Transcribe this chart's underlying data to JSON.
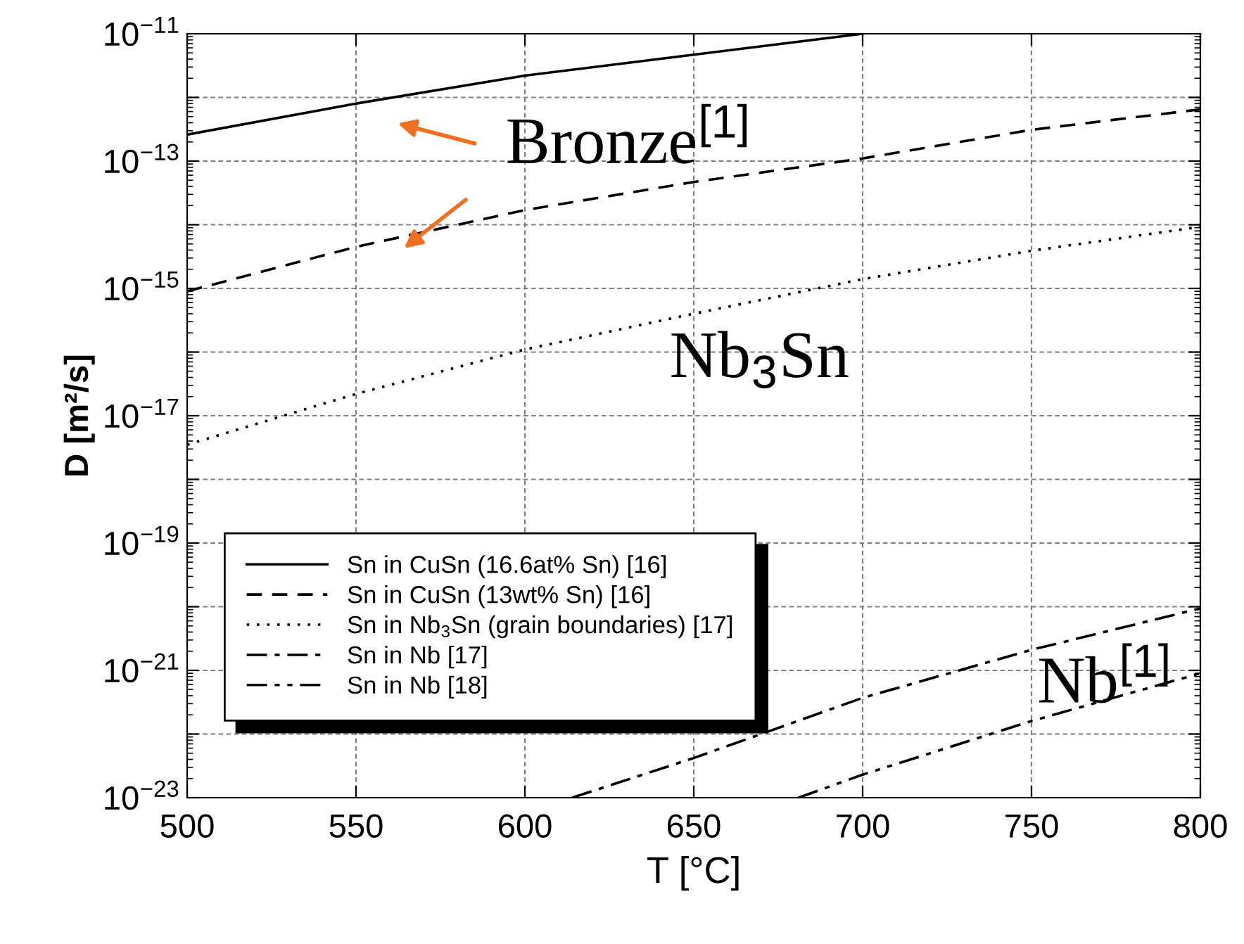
{
  "chart_data": {
    "type": "line",
    "xlabel": "T [°C]",
    "ylabel": "D [m²/s]",
    "xlim": [
      500,
      800
    ],
    "xticks": [
      500,
      550,
      600,
      650,
      700,
      750,
      800
    ],
    "log": "y",
    "ylim": [
      1e-23,
      1e-11
    ],
    "yticks": [
      {
        "value": 1e-23,
        "label": "10$^{−23}$"
      },
      {
        "value": 1e-22,
        "label": null
      },
      {
        "value": 1e-21,
        "label": "10$^{−21}$"
      },
      {
        "value": 1e-20,
        "label": null
      },
      {
        "value": 1e-19,
        "label": "10$^{−19}$"
      },
      {
        "value": 1e-18,
        "label": null
      },
      {
        "value": 1e-17,
        "label": "10$^{−17}$"
      },
      {
        "value": 1e-16,
        "label": null
      },
      {
        "value": 1e-15,
        "label": "10$^{−15}$"
      },
      {
        "value": 1e-14,
        "label": null
      },
      {
        "value": 1e-13,
        "label": "10$^{−13}$"
      },
      {
        "value": 1e-12,
        "label": null
      },
      {
        "value": 1e-11,
        "label": "10$^{−11}$"
      }
    ],
    "grid": true,
    "legend": "lower left",
    "marker": "none",
    "series": [
      {
        "name": "Sn in CuSn (16.6at% Sn) [16]",
        "color": "#000000",
        "line_style": "solid",
        "x": [
          500,
          550,
          600,
          650,
          700
        ],
        "values": [
          2.6e-13,
          8e-13,
          2.2e-12,
          4.7e-12,
          1e-11
        ]
      },
      {
        "name": "Sn in CuSn (13wt% Sn) [16]",
        "color": "#000000",
        "line_style": "dashed",
        "x": [
          500,
          550,
          600,
          650,
          700,
          750,
          800
        ],
        "values": [
          9e-16,
          4.5e-15,
          1.7e-14,
          4.7e-14,
          1.1e-13,
          3.1e-13,
          6.5e-13
        ]
      },
      {
        "name": "Sn in Nb$_{3}$Sn (grain boundaries) [17]",
        "color": "#000000",
        "line_style": "dotted",
        "x": [
          500,
          550,
          600,
          650,
          700,
          750,
          800
        ],
        "values": [
          3.5e-18,
          2.2e-17,
          1.1e-16,
          4e-16,
          1.4e-15,
          3.9e-15,
          9.3e-15
        ]
      },
      {
        "name": "Sn in Nb [17]",
        "color": "#000000",
        "line_style": "dashdot",
        "x": [
          614,
          650,
          700,
          750,
          800
        ],
        "values": [
          1e-23,
          4.2e-23,
          3.7e-22,
          2.1e-21,
          9.4e-21
        ]
      },
      {
        "name": "Sn in Nb [18]",
        "color": "#000000",
        "line_style": "dashdotdot",
        "x": [
          681,
          700,
          750,
          800
        ],
        "values": [
          1e-23,
          2.3e-23,
          1.6e-22,
          9e-22
        ]
      }
    ],
    "annotations": [
      "Bronze$^{[1]}$",
      "Nb$_{3}$Sn",
      "Nb$^{[1]}$"
    ]
  }
}
